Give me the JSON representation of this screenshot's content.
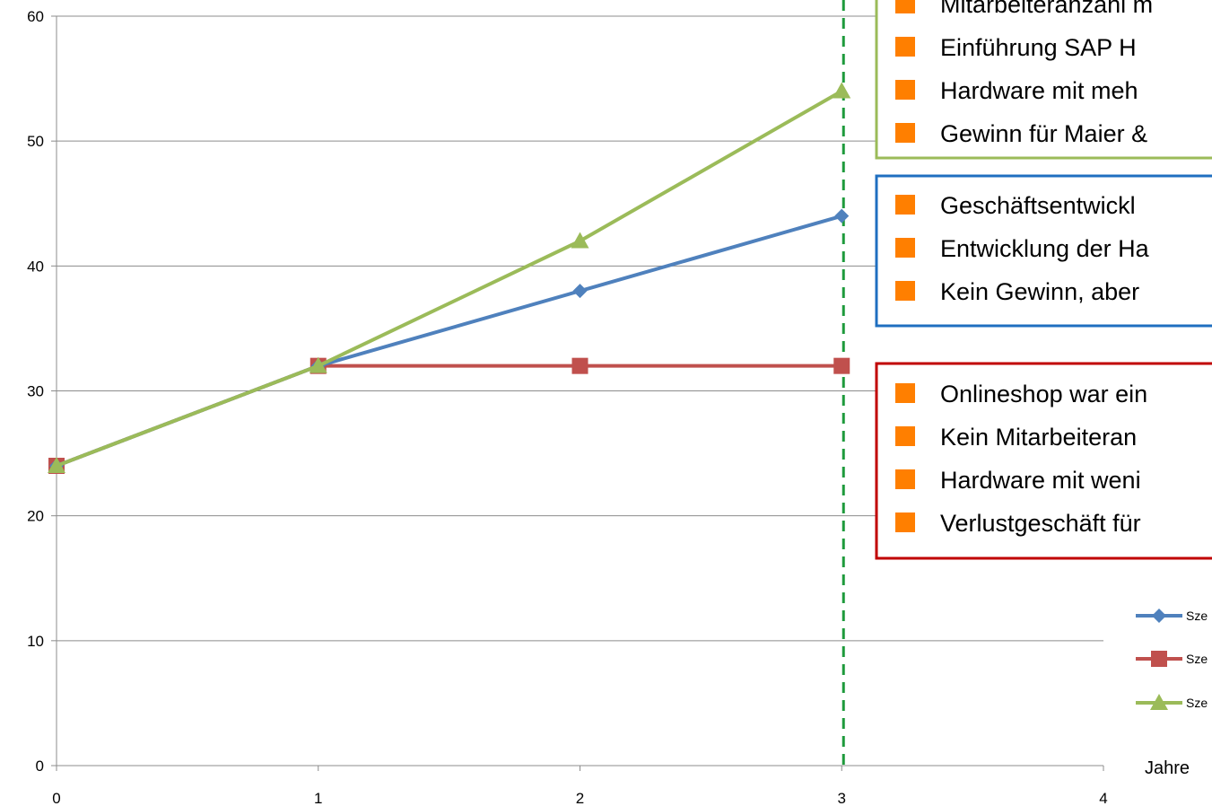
{
  "chart_data": {
    "type": "line",
    "x": [
      0,
      1,
      2,
      3
    ],
    "xlim": [
      0,
      4
    ],
    "ylim": [
      0,
      60
    ],
    "x_ticks": [
      "0",
      "1",
      "2",
      "3",
      "4"
    ],
    "y_ticks": [
      "0",
      "10",
      "20",
      "30",
      "40",
      "50",
      "60"
    ],
    "xlabel": "Jahre",
    "ylabel": "",
    "grid": "horizontal",
    "series": [
      {
        "name": "Sze",
        "color": "#4F81BD",
        "marker": "diamond",
        "values": [
          24,
          32,
          38,
          44
        ]
      },
      {
        "name": "Sze",
        "color": "#C0504D",
        "marker": "square",
        "values": [
          24,
          32,
          32,
          32
        ]
      },
      {
        "name": "Sze",
        "color": "#9BBB59",
        "marker": "triangle",
        "values": [
          24,
          32,
          42,
          54
        ]
      }
    ],
    "reference_line": {
      "x": 3,
      "color": "#1E9A3C",
      "style": "dashed"
    },
    "legend_placement": "right",
    "annotations": [
      {
        "border_color": "#9BBB59",
        "bullet_color": "#FF7F00",
        "items": [
          "Mitarbeiteranzahl m",
          "Einführung SAP H",
          "Hardware mit meh",
          "Gewinn für Maier &"
        ]
      },
      {
        "border_color": "#1F6FC0",
        "bullet_color": "#FF7F00",
        "items": [
          "Geschäftsentwickl",
          "Entwicklung der Ha",
          "Kein Gewinn, aber"
        ]
      },
      {
        "border_color": "#C00000",
        "bullet_color": "#FF7F00",
        "items": [
          "Onlineshop war ein",
          "Kein Mitarbeiteran",
          "Hardware mit weni",
          "Verlustgeschäft für"
        ]
      }
    ]
  }
}
